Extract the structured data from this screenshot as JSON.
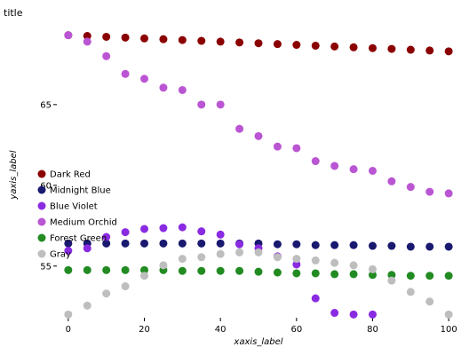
{
  "chart_data": {
    "type": "scatter",
    "title": "title",
    "xlabel": "xaxis_label",
    "ylabel": "yaxis_label",
    "xlim": [
      -3,
      103
    ],
    "ylim": [
      51.8,
      69.5
    ],
    "xticks": [
      0,
      20,
      40,
      60,
      80,
      100
    ],
    "yticks": [
      55,
      60,
      65
    ],
    "grid": false,
    "legend_position": "left",
    "x": [
      0,
      5,
      10,
      15,
      20,
      25,
      30,
      35,
      40,
      45,
      50,
      55,
      60,
      65,
      70,
      75,
      80,
      85,
      90,
      95,
      100
    ],
    "series": [
      {
        "name": "Dark Red",
        "color": "#8b0000",
        "values": [
          69.3,
          69.25,
          69.2,
          69.15,
          69.1,
          69.05,
          69.0,
          68.95,
          68.9,
          68.85,
          68.8,
          68.75,
          68.7,
          68.65,
          68.6,
          68.55,
          68.5,
          68.45,
          68.4,
          68.35,
          68.3
        ]
      },
      {
        "name": "Midnight Blue",
        "color": "#191970",
        "values": [
          56.4,
          56.4,
          56.4,
          56.4,
          56.4,
          56.4,
          56.4,
          56.4,
          56.4,
          56.4,
          56.4,
          56.35,
          56.35,
          56.3,
          56.3,
          56.3,
          56.25,
          56.25,
          56.2,
          56.2,
          56.2
        ]
      },
      {
        "name": "Blue Violet",
        "color": "#8a2be2",
        "values": [
          55.95,
          56.1,
          56.8,
          57.1,
          57.3,
          57.35,
          57.4,
          57.15,
          56.95,
          56.35,
          56.1,
          55.6,
          55.1,
          53.0,
          52.1,
          52.0,
          52.0,
          null,
          null,
          null,
          null
        ]
      },
      {
        "name": "Medium Orchid",
        "color": "#ba55d3",
        "values": [
          69.3,
          68.9,
          68.0,
          66.9,
          66.6,
          66.05,
          65.9,
          65.0,
          65.0,
          63.5,
          63.05,
          62.4,
          62.3,
          61.5,
          61.2,
          61.0,
          60.9,
          60.25,
          59.9,
          59.6,
          59.5
        ]
      },
      {
        "name": "Forest Green",
        "color": "#228b22",
        "values": [
          54.75,
          54.75,
          54.75,
          54.75,
          54.75,
          54.75,
          54.7,
          54.7,
          54.7,
          54.7,
          54.65,
          54.6,
          54.55,
          54.55,
          54.5,
          54.5,
          54.45,
          54.45,
          54.4,
          54.4,
          54.4
        ]
      },
      {
        "name": "Gray",
        "color": "#bebebe",
        "values": [
          null,
          null,
          null,
          null,
          null,
          null,
          null,
          null,
          null,
          null,
          null,
          null,
          null,
          null,
          null,
          null,
          null,
          null,
          null,
          null,
          null
        ],
        "points": [
          [
            0,
            52.0
          ],
          [
            5,
            52.55
          ],
          [
            10,
            53.3
          ],
          [
            15,
            53.75
          ],
          [
            20,
            54.4
          ],
          [
            25,
            55.05
          ],
          [
            30,
            55.45
          ],
          [
            35,
            55.55
          ],
          [
            40,
            55.75
          ],
          [
            45,
            55.85
          ],
          [
            50,
            55.85
          ],
          [
            55,
            55.55
          ],
          [
            60,
            55.45
          ],
          [
            65,
            55.35
          ],
          [
            70,
            55.2
          ],
          [
            75,
            55.05
          ],
          [
            80,
            54.8
          ],
          [
            85,
            54.1
          ],
          [
            90,
            53.4
          ],
          [
            95,
            52.8
          ],
          [
            100,
            52.0
          ]
        ]
      }
    ]
  }
}
